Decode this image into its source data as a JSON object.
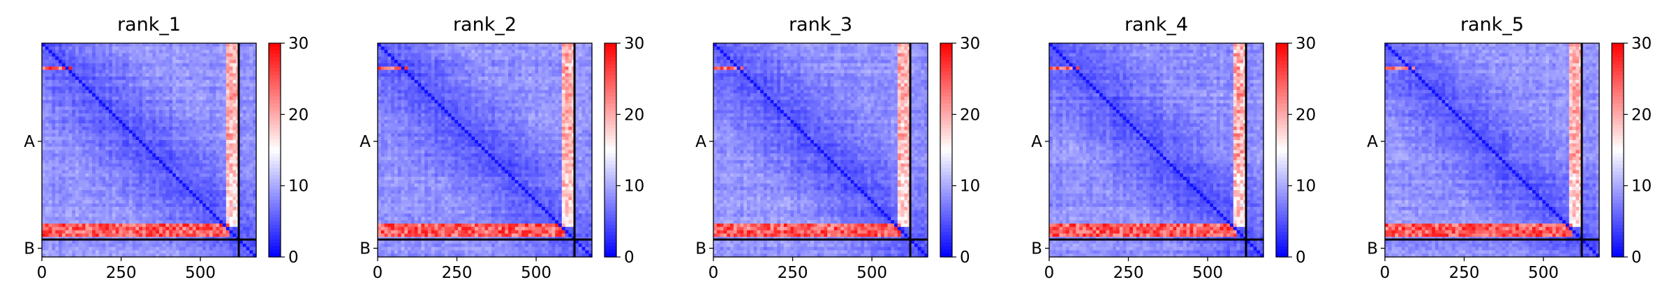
{
  "chart_data": [
    {
      "type": "heatmap",
      "title": "rank_1",
      "xlim": [
        0,
        676
      ],
      "xticks": [
        0,
        250,
        500
      ],
      "yticklabels": [
        "A",
        "B"
      ],
      "chain_boundary": 621,
      "colorbar": {
        "min": 0,
        "max": 30,
        "ticks": [
          0,
          10,
          20,
          30
        ],
        "colormap": "bwr"
      },
      "high_error_rows": [
        [
          78,
          82
        ],
        [
          575,
          608
        ]
      ],
      "light_columns": [
        [
          585,
          622
        ]
      ]
    },
    {
      "type": "heatmap",
      "title": "rank_2",
      "xlim": [
        0,
        676
      ],
      "xticks": [
        0,
        250,
        500
      ],
      "yticklabels": [
        "A",
        "B"
      ],
      "chain_boundary": 621,
      "colorbar": {
        "min": 0,
        "max": 30,
        "ticks": [
          0,
          10,
          20,
          30
        ],
        "colormap": "bwr"
      },
      "high_error_rows": [
        [
          78,
          82
        ],
        [
          575,
          608
        ]
      ],
      "light_columns": [
        [
          585,
          622
        ]
      ]
    },
    {
      "type": "heatmap",
      "title": "rank_3",
      "xlim": [
        0,
        676
      ],
      "xticks": [
        0,
        250,
        500
      ],
      "yticklabels": [
        "A",
        "B"
      ],
      "chain_boundary": 621,
      "colorbar": {
        "min": 0,
        "max": 30,
        "ticks": [
          0,
          10,
          20,
          30
        ],
        "colormap": "bwr"
      },
      "high_error_rows": [
        [
          78,
          82
        ],
        [
          575,
          608
        ]
      ],
      "light_columns": [
        [
          585,
          622
        ]
      ]
    },
    {
      "type": "heatmap",
      "title": "rank_4",
      "xlim": [
        0,
        676
      ],
      "xticks": [
        0,
        250,
        500
      ],
      "yticklabels": [
        "A",
        "B"
      ],
      "chain_boundary": 621,
      "colorbar": {
        "min": 0,
        "max": 30,
        "ticks": [
          0,
          10,
          20,
          30
        ],
        "colormap": "bwr"
      },
      "high_error_rows": [
        [
          78,
          82
        ],
        [
          575,
          608
        ]
      ],
      "light_columns": [
        [
          585,
          622
        ]
      ]
    },
    {
      "type": "heatmap",
      "title": "rank_5",
      "xlim": [
        0,
        676
      ],
      "xticks": [
        0,
        250,
        500
      ],
      "yticklabels": [
        "A",
        "B"
      ],
      "chain_boundary": 621,
      "colorbar": {
        "min": 0,
        "max": 30,
        "ticks": [
          0,
          10,
          20,
          30
        ],
        "colormap": "bwr"
      },
      "high_error_rows": [
        [
          78,
          82
        ],
        [
          575,
          608
        ]
      ],
      "light_columns": [
        [
          585,
          622
        ]
      ]
    }
  ]
}
